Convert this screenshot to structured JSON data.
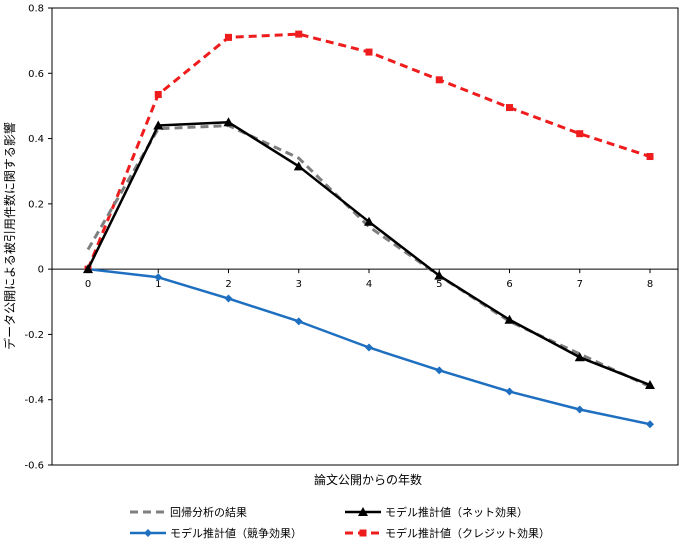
{
  "chart_data": {
    "type": "line",
    "title": "",
    "xlabel": "論文公開からの年数",
    "ylabel": "データ公開による被引用件数に関する影響",
    "x": [
      0,
      1,
      2,
      3,
      4,
      5,
      6,
      7,
      8
    ],
    "ylim": [
      -0.6,
      0.8
    ],
    "yticks": [
      -0.6,
      -0.4,
      -0.2,
      0,
      0.2,
      0.4,
      0.6,
      0.8
    ],
    "ytick_labels": [
      "-0.6",
      "-0.4",
      "-0.2",
      "0",
      "0.2",
      "0.4",
      "0.6",
      "0.8"
    ],
    "xtick_labels": [
      "0",
      "1",
      "2",
      "3",
      "4",
      "5",
      "6",
      "7",
      "8"
    ],
    "grid": false,
    "legend_position": "bottom",
    "series": [
      {
        "name": "回帰分析の結果",
        "color": "#7f7f7f",
        "style": "dashed",
        "marker": "none",
        "values": [
          0.06,
          0.43,
          0.44,
          0.34,
          0.13,
          -0.02,
          -0.16,
          -0.26,
          -0.36
        ]
      },
      {
        "name": "モデル推計値（ネット効果）",
        "color": "#000000",
        "style": "solid",
        "marker": "triangle",
        "values": [
          0.0,
          0.44,
          0.45,
          0.315,
          0.145,
          -0.02,
          -0.155,
          -0.27,
          -0.355
        ]
      },
      {
        "name": "モデル推計値（競争効果）",
        "color": "#1f6fc1",
        "style": "solid",
        "marker": "diamond",
        "values": [
          0.0,
          -0.025,
          -0.09,
          -0.16,
          -0.24,
          -0.31,
          -0.375,
          -0.43,
          -0.475
        ]
      },
      {
        "name": "モデル推計値（クレジット効果）",
        "color": "#ee1c1c",
        "style": "dashed",
        "marker": "square",
        "values": [
          0.0,
          0.535,
          0.71,
          0.72,
          0.665,
          0.58,
          0.495,
          0.415,
          0.345
        ]
      }
    ]
  }
}
